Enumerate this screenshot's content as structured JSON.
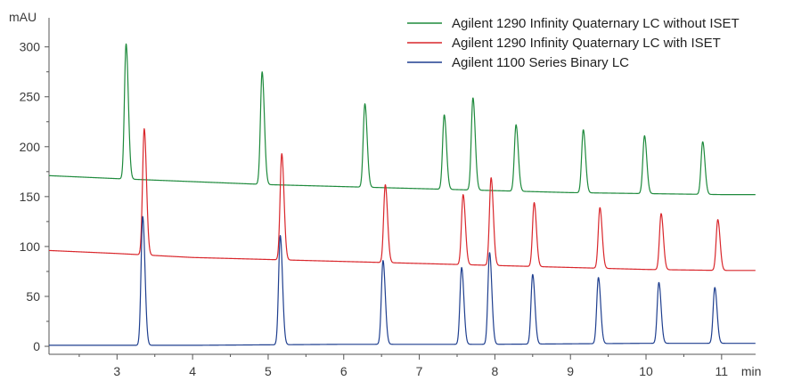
{
  "chart_data": {
    "type": "line",
    "ylabel": "mAU",
    "xlabel": "min",
    "xlim": [
      2.1,
      11.45
    ],
    "ylim": [
      -8,
      322
    ],
    "x_ticks": [
      3,
      4,
      5,
      6,
      7,
      8,
      9,
      10,
      11
    ],
    "y_ticks": [
      0,
      50,
      100,
      150,
      200,
      250,
      300
    ],
    "legend_position": "top-right",
    "grid": false,
    "series": [
      {
        "name": "Agilent 1290 Infinity Quaternary LC without ISET",
        "color": "#1e8a3c",
        "baseline": [
          [
            2.1,
            171
          ],
          [
            3.0,
            168
          ],
          [
            4.0,
            165
          ],
          [
            5.0,
            162
          ],
          [
            6.0,
            160
          ],
          [
            7.0,
            158
          ],
          [
            8.0,
            156
          ],
          [
            9.0,
            154
          ],
          [
            10.0,
            153
          ],
          [
            11.0,
            152
          ],
          [
            11.45,
            152
          ]
        ],
        "peaks": [
          {
            "rt": 3.12,
            "height": 303
          },
          {
            "rt": 4.92,
            "height": 275
          },
          {
            "rt": 6.28,
            "height": 243
          },
          {
            "rt": 7.33,
            "height": 232
          },
          {
            "rt": 7.71,
            "height": 249
          },
          {
            "rt": 8.28,
            "height": 222
          },
          {
            "rt": 9.17,
            "height": 217
          },
          {
            "rt": 9.98,
            "height": 211
          },
          {
            "rt": 10.75,
            "height": 205
          }
        ]
      },
      {
        "name": "Agilent 1290 Infinity Quaternary LC with ISET",
        "color": "#d9262b",
        "baseline": [
          [
            2.1,
            96
          ],
          [
            3.0,
            93
          ],
          [
            4.0,
            89
          ],
          [
            5.0,
            87
          ],
          [
            6.0,
            85
          ],
          [
            7.0,
            83
          ],
          [
            8.0,
            81
          ],
          [
            9.0,
            79
          ],
          [
            10.0,
            77
          ],
          [
            11.0,
            76
          ],
          [
            11.45,
            76
          ]
        ],
        "peaks": [
          {
            "rt": 3.36,
            "height": 218
          },
          {
            "rt": 5.18,
            "height": 193
          },
          {
            "rt": 6.55,
            "height": 162
          },
          {
            "rt": 7.58,
            "height": 152
          },
          {
            "rt": 7.95,
            "height": 169
          },
          {
            "rt": 8.52,
            "height": 144
          },
          {
            "rt": 9.39,
            "height": 139
          },
          {
            "rt": 10.2,
            "height": 133
          },
          {
            "rt": 10.95,
            "height": 127
          }
        ]
      },
      {
        "name": "Agilent 1100 Series Binary LC",
        "color": "#1f3f8f",
        "baseline": [
          [
            2.1,
            1
          ],
          [
            3.0,
            1
          ],
          [
            4.0,
            1
          ],
          [
            5.0,
            1.5
          ],
          [
            6.0,
            2
          ],
          [
            7.0,
            2
          ],
          [
            8.0,
            2
          ],
          [
            9.0,
            2.5
          ],
          [
            10.0,
            3
          ],
          [
            11.0,
            3
          ],
          [
            11.45,
            3
          ]
        ],
        "peaks": [
          {
            "rt": 3.34,
            "height": 130
          },
          {
            "rt": 5.16,
            "height": 111
          },
          {
            "rt": 6.52,
            "height": 86
          },
          {
            "rt": 7.56,
            "height": 79
          },
          {
            "rt": 7.93,
            "height": 94
          },
          {
            "rt": 8.5,
            "height": 72
          },
          {
            "rt": 9.37,
            "height": 69
          },
          {
            "rt": 10.17,
            "height": 64
          },
          {
            "rt": 10.91,
            "height": 59
          }
        ]
      }
    ]
  }
}
